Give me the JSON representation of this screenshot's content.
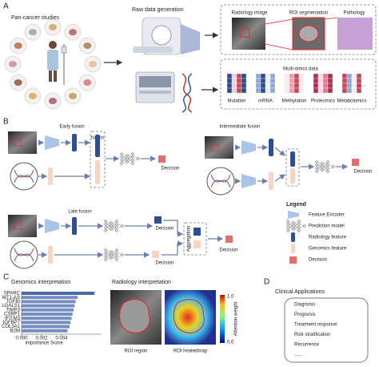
{
  "panel_a": {
    "label": "A",
    "pan_cancer_title": "Pan-cancer studies",
    "raw_data_title": "Raw data generation",
    "radiology_image": "Radiology image",
    "roi_segmentation": "ROI segmentation",
    "pathology": "Pathology",
    "multiomics_title": "Multi-omics data",
    "omics": [
      "Mutation",
      "mRNA",
      "Methylation",
      "Proteomics",
      "Metabolomics"
    ],
    "omics_more": "......"
  },
  "panel_b": {
    "label": "B",
    "early_fusion": {
      "title": "Early fusion",
      "fusion": "fusion",
      "decision": "Decision"
    },
    "intermediate_fusion": {
      "title": "Intermediate fusion",
      "decision": "Decision"
    },
    "late_fusion": {
      "title": "Late fusion",
      "decision_radiology": "Decision",
      "decision_genomics": "Decision",
      "aggregation": "Aggregation",
      "decision": "Decision"
    },
    "legend": {
      "title": "Legend",
      "items": [
        "Feature Encoder",
        "Prediction model",
        "Radiology feature",
        "Genomics feature",
        "Decision"
      ]
    }
  },
  "panel_c": {
    "label": "C",
    "genomics_chart": {
      "type": "bar",
      "title": "Genomics interpretation",
      "categories": [
        "SPARC",
        "WT1-AS",
        "TGFBI",
        "LGALS1",
        "TIMP3",
        "CSRP1",
        "IFITM3",
        "IGFBP7",
        "COL3A1",
        "B2M"
      ],
      "values": [
        0.0073,
        0.0056,
        0.0054,
        0.0053,
        0.0052,
        0.0051,
        0.005,
        0.0049,
        0.0048,
        0.0046
      ],
      "color": "#4a67ad",
      "xlim": [
        0,
        0.008
      ],
      "xticks": [
        {
          "value": 0,
          "label": "0.000"
        },
        {
          "value": 0.002,
          "label": "0.002"
        },
        {
          "value": 0.004,
          "label": "0.004"
        }
      ],
      "xlabel": "Importance Score"
    },
    "radiology": {
      "title": "Radiology interpretation",
      "roi_region": "ROI region",
      "roi_heatmap": "ROI heatedmap",
      "colorbar": {
        "label": "Attention weight",
        "max_label": "1.0",
        "min_label": "0.0"
      }
    }
  },
  "panel_d": {
    "label": "D",
    "title": "Clinical Applications",
    "items": [
      "Diagnosis",
      "Prognosis",
      "Treatment response",
      "Risk stratification",
      "Recurrence",
      "......"
    ]
  }
}
